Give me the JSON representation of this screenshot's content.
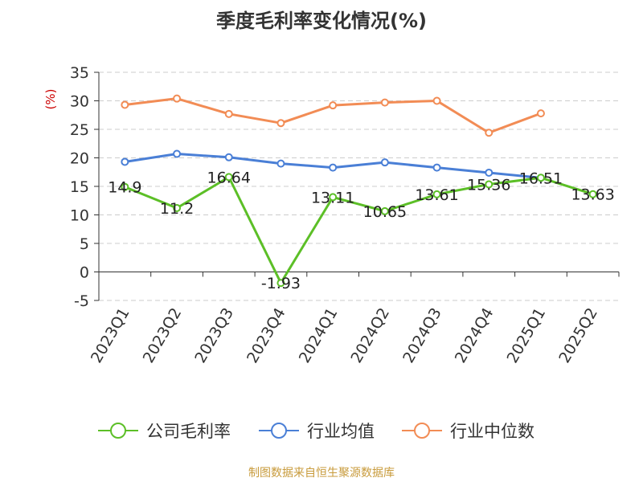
{
  "title": "季度毛利率变化情况(%)",
  "source": "制图数据来自恒生聚源数据库",
  "chart_data": {
    "type": "line",
    "title": "季度毛利率变化情况(%)",
    "ylabel": "(%)",
    "xlabel": "",
    "ylim": [
      -5,
      35
    ],
    "yticks": [
      -5,
      0,
      5,
      10,
      15,
      20,
      25,
      30,
      35
    ],
    "grid": true,
    "legend_position": "bottom",
    "categories": [
      "2023Q1",
      "2023Q2",
      "2023Q3",
      "2023Q4",
      "2024Q1",
      "2024Q2",
      "2024Q3",
      "2024Q4",
      "2025Q1",
      "2025Q2"
    ],
    "series": [
      {
        "name": "公司毛利率",
        "color": "#5cbf27",
        "values": [
          14.9,
          11.2,
          16.64,
          -1.93,
          13.11,
          10.65,
          13.61,
          15.36,
          16.51,
          13.63
        ],
        "labels": [
          "14.9",
          "11.2",
          "16.64",
          "-1.93",
          "13.11",
          "10.65",
          "13.61",
          "15.36",
          "16.51",
          "13.63"
        ]
      },
      {
        "name": "行业均值",
        "color": "#4a7fd6",
        "values": [
          19.3,
          20.7,
          20.1,
          19.0,
          18.3,
          19.2,
          18.3,
          17.4,
          16.5,
          null
        ]
      },
      {
        "name": "行业中位数",
        "color": "#f28c55",
        "values": [
          29.3,
          30.4,
          27.7,
          26.1,
          29.2,
          29.7,
          30.0,
          24.4,
          27.8,
          null
        ]
      }
    ]
  }
}
